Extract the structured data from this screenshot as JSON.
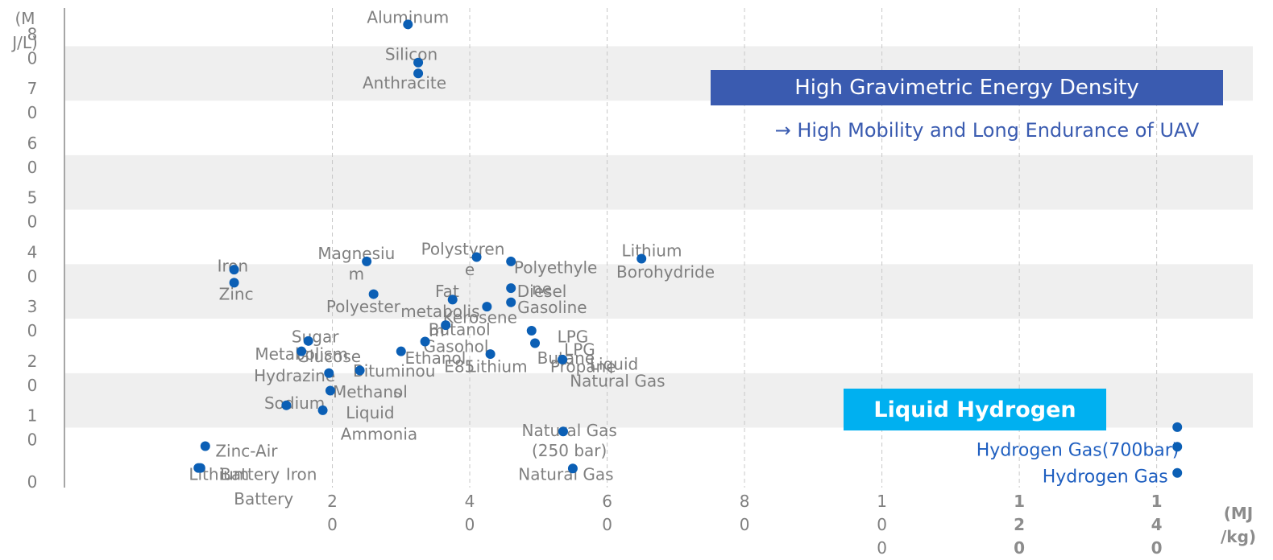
{
  "chart_data": {
    "type": "scatter",
    "title": "",
    "xlabel": "",
    "ylabel": "",
    "x_unit_label": [
      "(MJ",
      "/kg)"
    ],
    "y_unit_label": [
      "(M",
      "J/L)"
    ],
    "xlim": [
      -19,
      154
    ],
    "ylim": [
      -1,
      87
    ],
    "x_ticks": [
      {
        "value": 20,
        "lines": [
          "2",
          "0"
        ],
        "bold": false
      },
      {
        "value": 40,
        "lines": [
          "4",
          "0"
        ],
        "bold": false
      },
      {
        "value": 60,
        "lines": [
          "6",
          "0"
        ],
        "bold": false
      },
      {
        "value": 80,
        "lines": [
          "8",
          "0"
        ],
        "bold": false
      },
      {
        "value": 100,
        "lines": [
          "1",
          "0",
          "0"
        ],
        "bold": false
      },
      {
        "value": 120,
        "lines": [
          "1",
          "2",
          "0"
        ],
        "bold": true
      },
      {
        "value": 140,
        "lines": [
          "1",
          "4",
          "0"
        ],
        "bold": true
      }
    ],
    "y_ticks": [
      {
        "value": 0,
        "lines": [
          "0"
        ]
      },
      {
        "value": 10,
        "lines": [
          "1",
          "0"
        ]
      },
      {
        "value": 20,
        "lines": [
          "2",
          "0"
        ]
      },
      {
        "value": 30,
        "lines": [
          "3",
          "0"
        ]
      },
      {
        "value": 40,
        "lines": [
          "4",
          "0"
        ]
      },
      {
        "value": 50,
        "lines": [
          "5",
          "0"
        ]
      },
      {
        "value": 60,
        "lines": [
          "6",
          "0"
        ]
      },
      {
        "value": 70,
        "lines": [
          "7",
          "0"
        ]
      },
      {
        "value": 80,
        "lines": [
          "8",
          "0"
        ]
      }
    ],
    "grid": {
      "vertical": "dashed",
      "horizontal_bands": true
    },
    "points": [
      {
        "name": "Aluminum",
        "x": 31,
        "y": 84
      },
      {
        "name": "Silicon",
        "x": 32.5,
        "y": 77
      },
      {
        "name": "Anthracite",
        "x": 32.5,
        "y": 75
      },
      {
        "name": "Lithium Borohydride",
        "x": 65,
        "y": 41
      },
      {
        "name": "Polystyrene",
        "x": 41,
        "y": 41.3
      },
      {
        "name": "Polyethylene",
        "x": 46,
        "y": 40.5
      },
      {
        "name": "Magnesium",
        "x": 25,
        "y": 40.5
      },
      {
        "name": "Iron",
        "x": 5.7,
        "y": 39
      },
      {
        "name": "Zinc",
        "x": 5.7,
        "y": 36.6
      },
      {
        "name": "Polyester",
        "x": 26,
        "y": 34.5
      },
      {
        "name": "Diesel",
        "x": 46,
        "y": 35.6
      },
      {
        "name": "Fat metabolism",
        "x": 37.5,
        "y": 33.5
      },
      {
        "name": "Gasoline",
        "x": 46,
        "y": 33
      },
      {
        "name": "Kerosene",
        "x": 42.5,
        "y": 32.2
      },
      {
        "name": "Butanol",
        "x": 36.5,
        "y": 28.8
      },
      {
        "name": "LPG Propane",
        "x": 49,
        "y": 27.8
      },
      {
        "name": "LPG Butane",
        "x": 49.5,
        "y": 25.5
      },
      {
        "name": "Gasohol E85",
        "x": 33.5,
        "y": 25.8
      },
      {
        "name": "Lithium",
        "x": 43,
        "y": 23.5
      },
      {
        "name": "Ethanol",
        "x": 30,
        "y": 24
      },
      {
        "name": "Liquid Natural Gas",
        "x": 53.5,
        "y": 22.5
      },
      {
        "name": "Sugar",
        "x": 16.5,
        "y": 25.9
      },
      {
        "name": "Metabolism Glucose",
        "x": 15.5,
        "y": 24
      },
      {
        "name": "Bituminous",
        "x": 24,
        "y": 20.5
      },
      {
        "name": "Hydrazine",
        "x": 19.5,
        "y": 20
      },
      {
        "name": "Methanol",
        "x": 19.7,
        "y": 16.8
      },
      {
        "name": "Sodium",
        "x": 13.3,
        "y": 14.1
      },
      {
        "name": "Liquid Ammonia",
        "x": 18.6,
        "y": 13.2
      },
      {
        "name": "Natural Gas (250 bar)",
        "x": 53.6,
        "y": 9.3
      },
      {
        "name": "Natural Gas",
        "x": 55,
        "y": 2.5
      },
      {
        "name": "Zinc-Air Battery",
        "x": 1.5,
        "y": 6.6
      },
      {
        "name": "Lithium Battery",
        "x": 0.5,
        "y": 2.6
      },
      {
        "name": "Battery Iron",
        "x": 0.8,
        "y": 2.6
      },
      {
        "name": "Liquid Hydrogen",
        "x": 143,
        "y": 10.1
      },
      {
        "name": "Hydrogen Gas(700bar)",
        "x": 143,
        "y": 6.5
      },
      {
        "name": "Hydrogen Gas",
        "x": 143,
        "y": 1.7
      }
    ],
    "labels": [
      {
        "text": "Aluminum",
        "x": 31,
        "y": 85.3,
        "style": "gray"
      },
      {
        "text": "Silicon",
        "x": 31.5,
        "y": 78.5,
        "style": "gray"
      },
      {
        "text": "Anthracite",
        "x": 30.5,
        "y": 73.3,
        "style": "gray"
      },
      {
        "text": "Lithium",
        "x": 66.5,
        "y": 42.5,
        "style": "gray"
      },
      {
        "text": "Borohydride",
        "x": 68.5,
        "y": 38.6,
        "style": "gray"
      },
      {
        "text": "Polystyren",
        "x": 39,
        "y": 42.8,
        "style": "gray"
      },
      {
        "text": "e",
        "x": 40,
        "y": 39,
        "style": "gray"
      },
      {
        "text": "Polyethyle",
        "x": 52.5,
        "y": 39.4,
        "style": "gray"
      },
      {
        "text": "ne",
        "x": 50.5,
        "y": 35.5,
        "style": "gray"
      },
      {
        "text": "Magnesiu",
        "x": 23.5,
        "y": 42,
        "style": "gray"
      },
      {
        "text": "m",
        "x": 23.5,
        "y": 38.2,
        "style": "gray"
      },
      {
        "text": "Iron",
        "x": 5.5,
        "y": 39.7,
        "style": "gray"
      },
      {
        "text": "Zinc",
        "x": 6,
        "y": 34.5,
        "style": "gray"
      },
      {
        "text": "Fat",
        "x": 36.7,
        "y": 35,
        "style": "gray"
      },
      {
        "text": "metabolis",
        "x": 35.7,
        "y": 31.3,
        "style": "gray"
      },
      {
        "text": "m",
        "x": 35.2,
        "y": 27.8,
        "style": "gray"
      },
      {
        "text": "Polyester",
        "x": 24.5,
        "y": 32.2,
        "style": "gray"
      },
      {
        "text": "Diesel",
        "x": 50.5,
        "y": 35,
        "style": "gray"
      },
      {
        "text": "Gasoline",
        "x": 52,
        "y": 32.1,
        "style": "gray"
      },
      {
        "text": "Kerosene",
        "x": 41.5,
        "y": 30.2,
        "style": "gray"
      },
      {
        "text": "Butanol",
        "x": 38.5,
        "y": 28,
        "style": "gray"
      },
      {
        "text": "Gasohol",
        "x": 38,
        "y": 24.9,
        "style": "gray"
      },
      {
        "text": "E85",
        "x": 38.5,
        "y": 21.2,
        "style": "gray"
      },
      {
        "text": "Lithium",
        "x": 44,
        "y": 21.2,
        "style": "gray"
      },
      {
        "text": "Ethanol",
        "x": 35,
        "y": 22.8,
        "style": "gray"
      },
      {
        "text": "LPG",
        "x": 55,
        "y": 26.7,
        "style": "gray"
      },
      {
        "text": "LPG",
        "x": 56,
        "y": 24.3,
        "style": "gray"
      },
      {
        "text": "Butane",
        "x": 54,
        "y": 22.8,
        "style": "gray"
      },
      {
        "text": "Propane",
        "x": 56.5,
        "y": 21.2,
        "style": "gray"
      },
      {
        "text": "Liquid",
        "x": 61,
        "y": 21.7,
        "style": "gray"
      },
      {
        "text": "Natural Gas",
        "x": 61.5,
        "y": 18.6,
        "style": "gray"
      },
      {
        "text": "Sugar",
        "x": 17.5,
        "y": 26.7,
        "style": "gray"
      },
      {
        "text": "Metabolism",
        "x": 15.5,
        "y": 23.5,
        "style": "gray"
      },
      {
        "text": "Glucose",
        "x": 19.5,
        "y": 23.1,
        "style": "gray"
      },
      {
        "text": "Bituminou",
        "x": 29,
        "y": 20.4,
        "style": "gray"
      },
      {
        "text": "s",
        "x": 29.5,
        "y": 16.6,
        "style": "gray"
      },
      {
        "text": "Hydrazine",
        "x": 14.5,
        "y": 19.5,
        "style": "gray"
      },
      {
        "text": "Methanol",
        "x": 25.5,
        "y": 16.6,
        "style": "gray"
      },
      {
        "text": "Sodium",
        "x": 14.5,
        "y": 14.5,
        "style": "gray"
      },
      {
        "text": "Liquid",
        "x": 25.5,
        "y": 12.7,
        "style": "gray"
      },
      {
        "text": "Ammonia",
        "x": 26.8,
        "y": 8.8,
        "style": "gray"
      },
      {
        "text": "Natural Gas",
        "x": 54.5,
        "y": 9.5,
        "style": "gray"
      },
      {
        "text": "(250 bar)",
        "x": 54.5,
        "y": 5.8,
        "style": "gray"
      },
      {
        "text": "Natural Gas",
        "x": 54,
        "y": 1.4,
        "style": "gray"
      },
      {
        "text": "Zinc-Air",
        "x": 7.5,
        "y": 5.7,
        "style": "gray"
      },
      {
        "text": "Battery",
        "x": 10,
        "y": -3.1,
        "style": "gray"
      },
      {
        "text": "Lithium",
        "x": 3.5,
        "y": 1.4,
        "style": "gray"
      },
      {
        "text": "Battery",
        "x": 8,
        "y": 1.4,
        "style": "gray"
      },
      {
        "text": "Iron",
        "x": 15.5,
        "y": 1.4,
        "style": "gray"
      },
      {
        "text": "Hydrogen Gas(700bar)",
        "x": 128.5,
        "y": 5.9,
        "style": "blue"
      },
      {
        "text": "Hydrogen Gas",
        "x": 132.5,
        "y": 1,
        "style": "blue"
      }
    ],
    "annotations": {
      "headline": "High Gravimetric Energy Density",
      "subline": "→ High Mobility and Long Endurance of UAV",
      "highlight_box": "Liquid Hydrogen"
    },
    "colors": {
      "marker": "#0b5fb5",
      "band": "#efefef",
      "headline_bg": "#3a5bb0",
      "highlight_bg": "#00b0f0",
      "hydrogen_text": "#1f5fc0"
    }
  }
}
